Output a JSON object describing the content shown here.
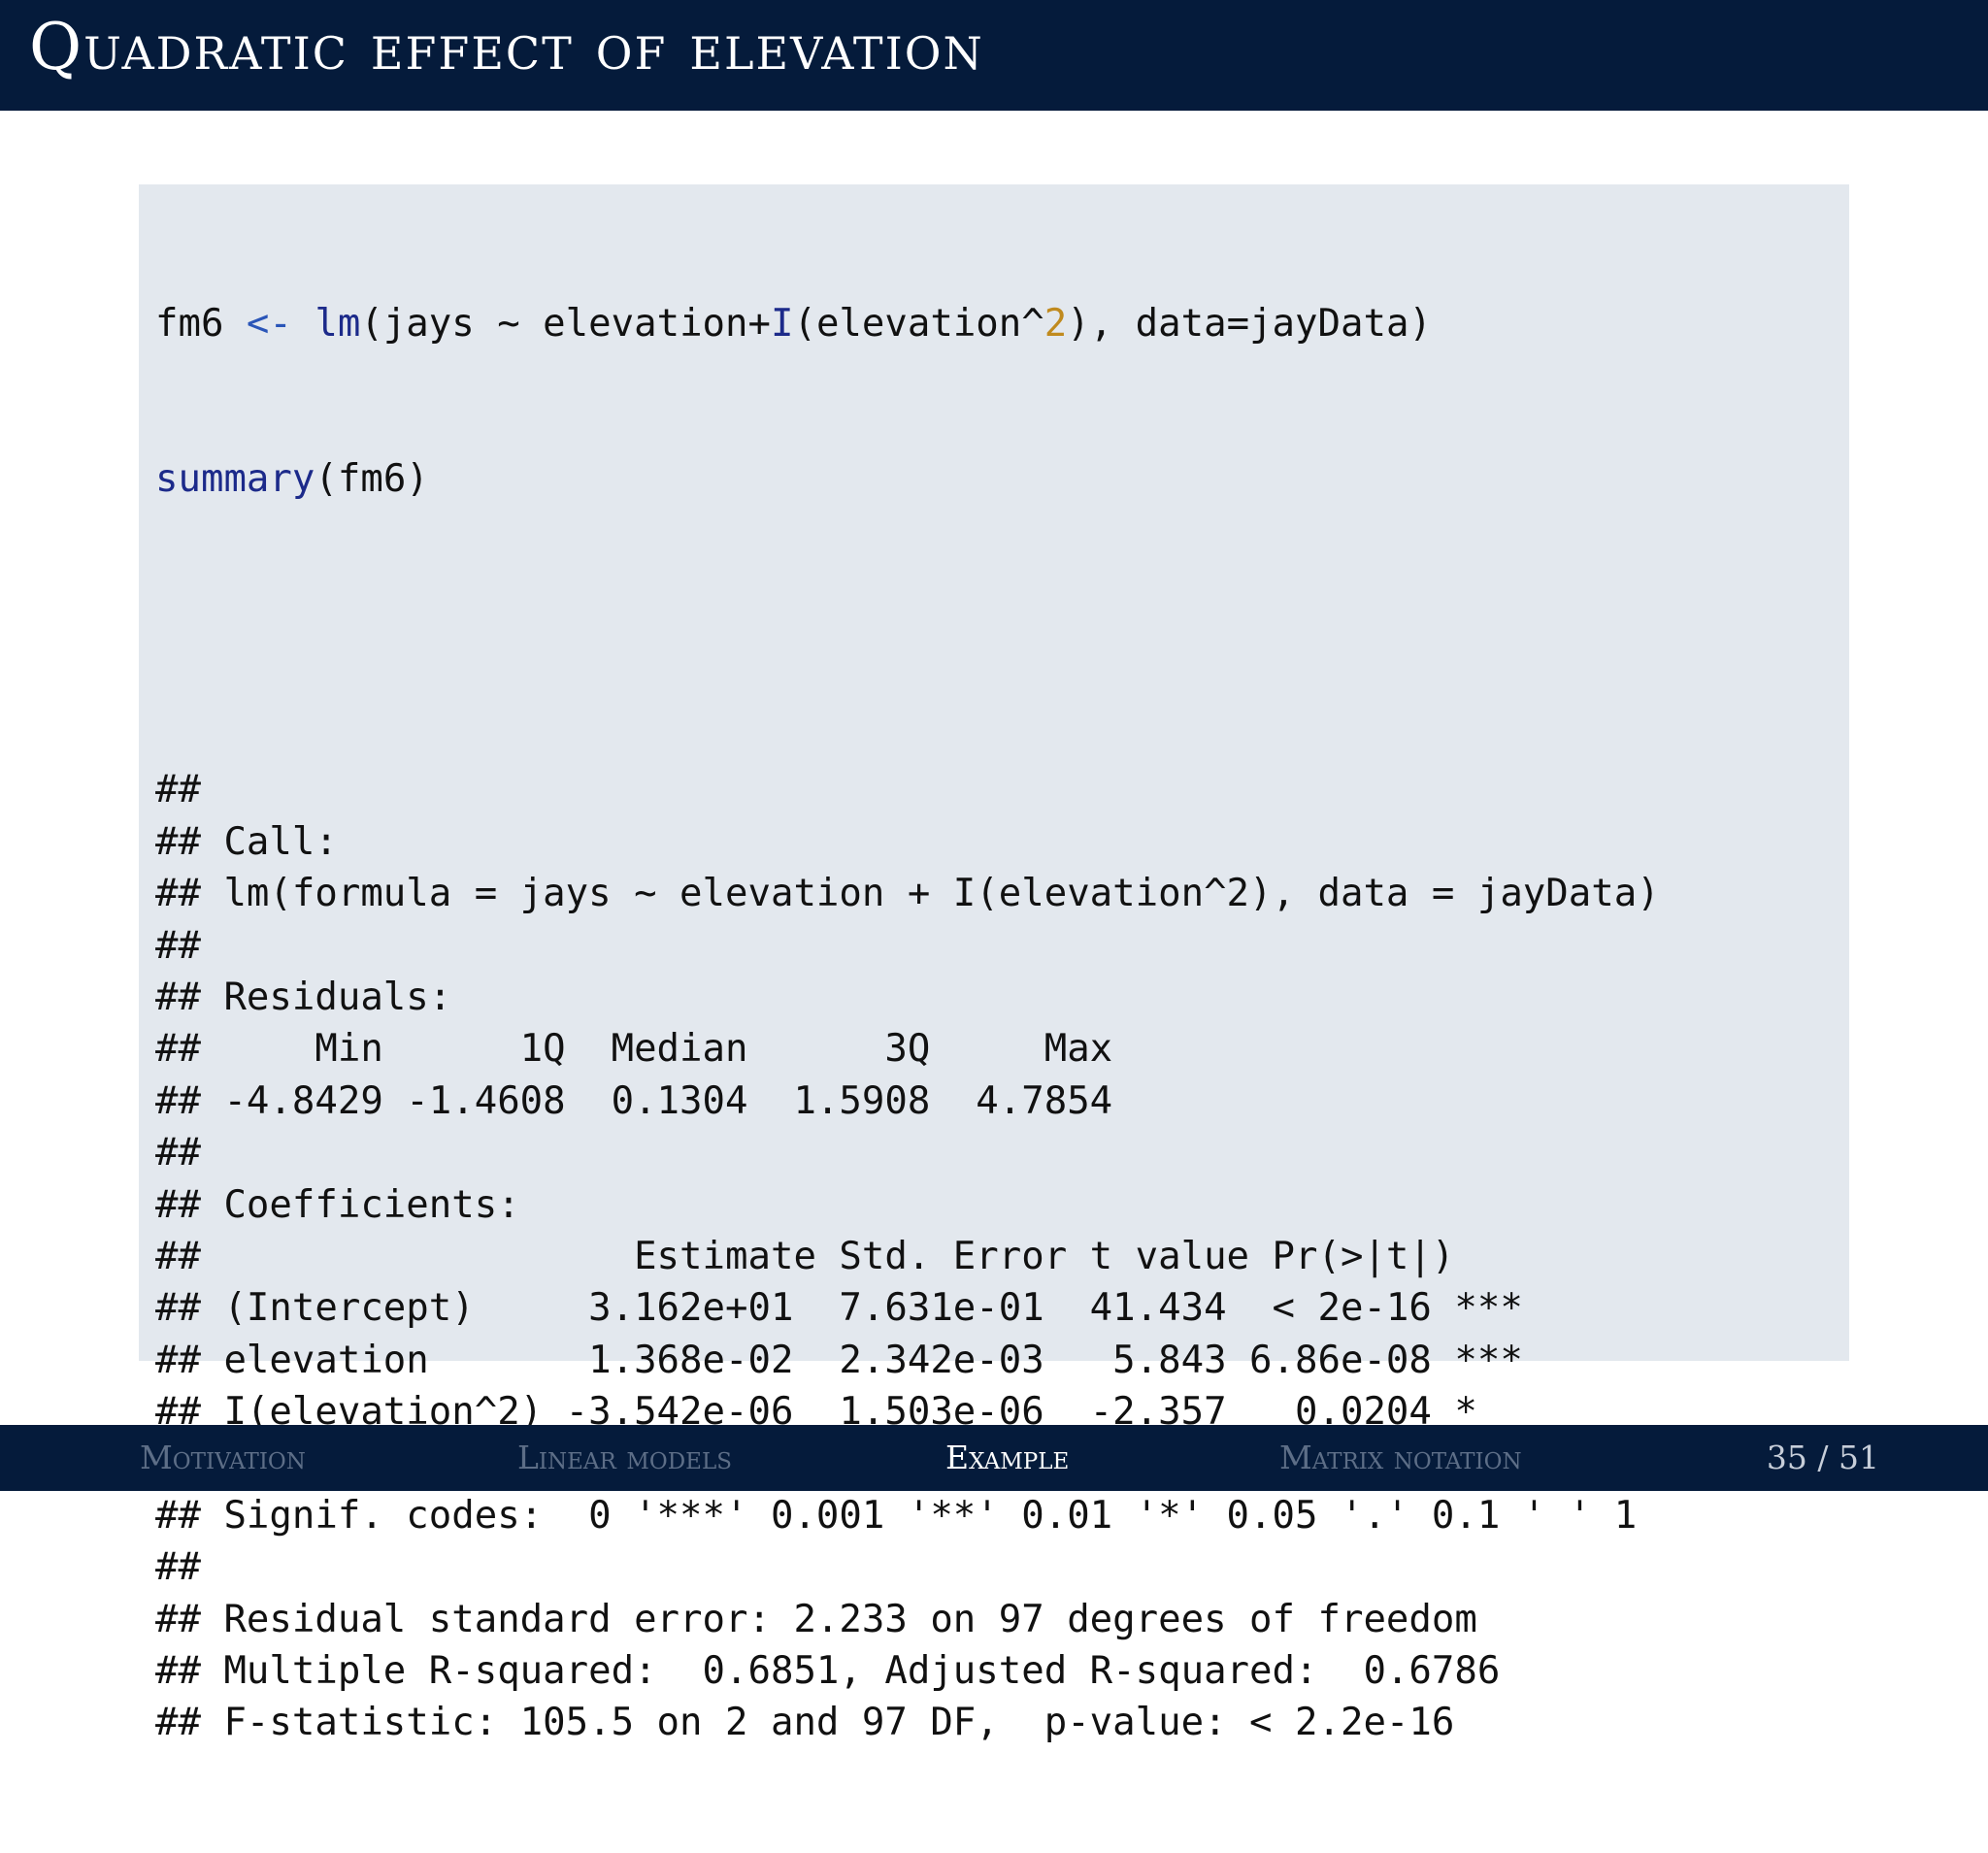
{
  "slide": {
    "title": "Quadratic effect of elevation"
  },
  "code": {
    "input": {
      "line1": {
        "part1": "fm6 ",
        "assign": "<-",
        "part2": " ",
        "func_lm": "lm",
        "part3": "(jays ~ elevation+",
        "func_I": "I",
        "part4": "(elevation^",
        "num": "2",
        "part5": "), data=jayData)"
      },
      "line2": {
        "func_summary": "summary",
        "part1": "(fm6)"
      }
    },
    "output_lines": [
      "##",
      "## Call:",
      "## lm(formula = jays ~ elevation + I(elevation^2), data = jayData)",
      "##",
      "## Residuals:",
      "##     Min      1Q  Median      3Q     Max",
      "## -4.8429 -1.4608  0.1304  1.5908  4.7854",
      "##",
      "## Coefficients:",
      "##                   Estimate Std. Error t value Pr(>|t|)",
      "## (Intercept)     3.162e+01  7.631e-01  41.434  < 2e-16 ***",
      "## elevation       1.368e-02  2.342e-03   5.843 6.86e-08 ***",
      "## I(elevation^2) -3.542e-06  1.503e-06  -2.357   0.0204 *",
      "## ---",
      "## Signif. codes:  0 '***' 0.001 '**' 0.01 '*' 0.05 '.' 0.1 ' ' 1",
      "##",
      "## Residual standard error: 2.233 on 97 degrees of freedom",
      "## Multiple R-squared:  0.6851, Adjusted R-squared:  0.6786",
      "## F-statistic: 105.5 on 2 and 97 DF,  p-value: < 2.2e-16"
    ]
  },
  "footer": {
    "nav": [
      {
        "label": "Motivation",
        "active": false
      },
      {
        "label": "Linear models",
        "active": false
      },
      {
        "label": "Example",
        "active": true
      },
      {
        "label": "Matrix notation",
        "active": false
      }
    ],
    "page": "35 / 51"
  },
  "colors": {
    "header_bg": "#051b3b",
    "code_bg": "#e3e8ee",
    "assign_op": "#2a55b8",
    "function": "#1c2a8a",
    "number": "#c08a1e",
    "nav_inactive": "#5d6e87",
    "nav_active": "#ffffff"
  }
}
